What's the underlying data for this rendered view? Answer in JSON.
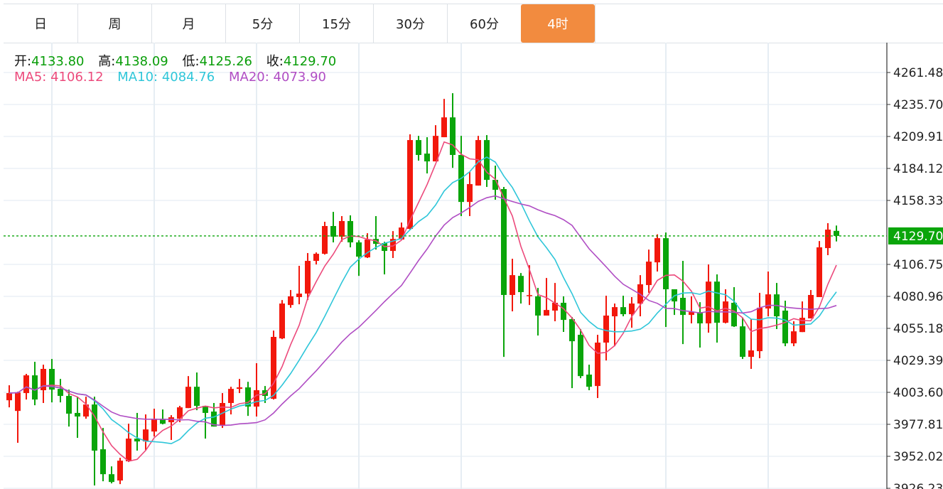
{
  "tabs": [
    {
      "label": "日",
      "active": false
    },
    {
      "label": "周",
      "active": false
    },
    {
      "label": "月",
      "active": false
    },
    {
      "label": "5分",
      "active": false
    },
    {
      "label": "15分",
      "active": false
    },
    {
      "label": "30分",
      "active": false
    },
    {
      "label": "60分",
      "active": false
    },
    {
      "label": "4时",
      "active": true
    }
  ],
  "ohlc_legend": {
    "open_label": "开:",
    "open": "4133.80",
    "high_label": "高:",
    "high": "4138.09",
    "low_label": "低:",
    "low": "4125.26",
    "close_label": "收:",
    "close": "4129.70"
  },
  "ma_legend": {
    "ma5_label": "MA5:",
    "ma5": "4106.12",
    "ma10_label": "MA10:",
    "ma10": "4084.76",
    "ma20_label": "MA20:",
    "ma20": "4073.90"
  },
  "colors": {
    "up": "#f2180c",
    "down": "#0aa50a",
    "ma5": "#ec4a7c",
    "ma10": "#2fc6d9",
    "ma20": "#b04ec4",
    "accent": "#f28b3f",
    "price_line": "#0aa50a"
  },
  "chart_data": {
    "type": "candlestick",
    "title": "",
    "interval": "4时",
    "ylim": [
      3926.23,
      4261.48
    ],
    "yticks": [
      "4261.48",
      "4235.70",
      "4209.91",
      "4184.12",
      "4158.33",
      "4106.75",
      "4080.96",
      "4055.18",
      "4029.39",
      "4003.60",
      "3977.81",
      "3952.02",
      "3926.23"
    ],
    "current_price": "4129.70",
    "ma_periods": [
      5,
      10,
      20
    ],
    "grid": true,
    "candles": [
      [
        3997.2,
        4009.3,
        3991.5,
        4003.0
      ],
      [
        3988.6,
        4004.1,
        3962.9,
        4003.5
      ],
      [
        4003.0,
        4018.5,
        3997.8,
        4017.3
      ],
      [
        4017.3,
        4028.2,
        3993.2,
        3997.8
      ],
      [
        4005.3,
        4025.9,
        3995.0,
        4022.5
      ],
      [
        4022.5,
        4030.5,
        3995.5,
        4005.8
      ],
      [
        4006.4,
        4014.4,
        3995.5,
        4000.7
      ],
      [
        4000.7,
        4005.8,
        3976.0,
        3986.4
      ],
      [
        3987.0,
        4000.1,
        3966.9,
        3984.1
      ],
      [
        3984.1,
        4000.1,
        3982.3,
        3993.8
      ],
      [
        3993.8,
        4000.1,
        3928.5,
        3956.6
      ],
      [
        3957.7,
        3974.9,
        3931.9,
        3937.6
      ],
      [
        3937.6,
        3943.9,
        3930.2,
        3931.3
      ],
      [
        3932.5,
        3950.8,
        3929.6,
        3948.5
      ],
      [
        3948.0,
        3978.3,
        3947.4,
        3966.3
      ],
      [
        3966.3,
        3987.0,
        3956.6,
        3964.0
      ],
      [
        3964.0,
        3985.8,
        3957.1,
        3973.7
      ],
      [
        3972.0,
        3990.4,
        3968.0,
        3982.3
      ],
      [
        3982.3,
        3989.8,
        3977.8,
        3978.3
      ],
      [
        3979.5,
        3985.2,
        3965.2,
        3983.5
      ],
      [
        3982.3,
        3992.7,
        3979.5,
        3991.5
      ],
      [
        3990.9,
        4016.7,
        3990.9,
        4008.1
      ],
      [
        4008.1,
        4019.6,
        3989.2,
        3992.7
      ],
      [
        3992.7,
        3992.7,
        3966.3,
        3987.0
      ],
      [
        3988.1,
        3995.0,
        3976.0,
        3976.0
      ],
      [
        3977.2,
        4003.0,
        3974.9,
        3995.0
      ],
      [
        3995.0,
        4008.1,
        3985.8,
        4006.4
      ],
      [
        4006.4,
        4014.4,
        4003.0,
        4007.6
      ],
      [
        4007.6,
        4012.1,
        3984.6,
        3992.1
      ],
      [
        3992.1,
        4027.1,
        3984.1,
        4005.3
      ],
      [
        4005.3,
        4008.7,
        3995.0,
        4000.7
      ],
      [
        3998.4,
        4053.4,
        3997.8,
        4048.3
      ],
      [
        4047.1,
        4078.0,
        4046.5,
        4075.2
      ],
      [
        4074.0,
        4086.1,
        4071.8,
        4081.0
      ],
      [
        4080.4,
        4105.6,
        4074.6,
        4083.2
      ],
      [
        4083.2,
        4115.9,
        4078.0,
        4109.6
      ],
      [
        4109.6,
        4116.4,
        4106.7,
        4115.3
      ],
      [
        4115.3,
        4141.1,
        4114.7,
        4137.7
      ],
      [
        4137.7,
        4149.1,
        4124.5,
        4129.1
      ],
      [
        4129.1,
        4145.7,
        4125.0,
        4141.7
      ],
      [
        4141.7,
        4146.3,
        4120.5,
        4124.5
      ],
      [
        4124.5,
        4126.2,
        4097.5,
        4113.0
      ],
      [
        4112.4,
        4131.9,
        4111.9,
        4126.8
      ],
      [
        4127.3,
        4145.7,
        4118.7,
        4123.3
      ],
      [
        4123.9,
        4125.0,
        4098.7,
        4117.6
      ],
      [
        4117.6,
        4133.6,
        4111.9,
        4127.3
      ],
      [
        4126.8,
        4140.5,
        4126.8,
        4136.5
      ],
      [
        4135.4,
        4211.6,
        4134.8,
        4207.0
      ],
      [
        4207.0,
        4210.4,
        4190.4,
        4195.0
      ],
      [
        4196.1,
        4209.3,
        4180.1,
        4189.8
      ],
      [
        4189.8,
        4219.0,
        4189.8,
        4210.4
      ],
      [
        4209.3,
        4240.2,
        4209.3,
        4225.3
      ],
      [
        4225.3,
        4244.8,
        4184.6,
        4195.0
      ],
      [
        4195.0,
        4210.4,
        4145.7,
        4157.1
      ],
      [
        4157.1,
        4181.2,
        4145.7,
        4171.5
      ],
      [
        4170.3,
        4210.4,
        4170.3,
        4207.0
      ],
      [
        4207.0,
        4211.0,
        4169.2,
        4174.9
      ],
      [
        4174.9,
        4186.4,
        4158.9,
        4166.9
      ],
      [
        4167.5,
        4169.2,
        4032.2,
        4082.1
      ],
      [
        4082.1,
        4111.3,
        4068.9,
        4098.1
      ],
      [
        4097.5,
        4099.8,
        4075.2,
        4084.4
      ],
      [
        4081.6,
        4106.1,
        4074.0,
        4082.0
      ],
      [
        4081.0,
        4087.8,
        4049.4,
        4065.5
      ],
      [
        4065.5,
        4095.8,
        4065.5,
        4070.0
      ],
      [
        4069.5,
        4091.8,
        4060.9,
        4075.8
      ],
      [
        4075.8,
        4081.0,
        4052.3,
        4062.0
      ],
      [
        4062.6,
        4064.3,
        4007.0,
        4044.8
      ],
      [
        4050.0,
        4054.6,
        4015.0,
        4016.7
      ],
      [
        4017.9,
        4025.9,
        4005.3,
        4008.1
      ],
      [
        4008.7,
        4050.0,
        3999.0,
        4043.7
      ],
      [
        4043.7,
        4081.5,
        4029.3,
        4065.5
      ],
      [
        4064.9,
        4075.2,
        4040.8,
        4072.3
      ],
      [
        4072.3,
        4081.5,
        4064.9,
        4066.6
      ],
      [
        4066.6,
        4080.4,
        4055.7,
        4075.2
      ],
      [
        4075.2,
        4098.1,
        4064.9,
        4090.7
      ],
      [
        4090.1,
        4118.7,
        4083.8,
        4109.0
      ],
      [
        4108.4,
        4131.0,
        4101.0,
        4127.9
      ],
      [
        4127.9,
        4132.5,
        4056.3,
        4086.7
      ],
      [
        4086.7,
        4086.7,
        4066.0,
        4076.9
      ],
      [
        4079.8,
        4109.6,
        4042.5,
        4066.0
      ],
      [
        4066.0,
        4081.0,
        4059.2,
        4068.3
      ],
      [
        4068.3,
        4076.3,
        4039.7,
        4059.2
      ],
      [
        4059.2,
        4106.7,
        4051.7,
        4092.9
      ],
      [
        4092.9,
        4098.7,
        4043.7,
        4059.7
      ],
      [
        4059.7,
        4086.7,
        4059.2,
        4076.9
      ],
      [
        4075.8,
        4088.4,
        4056.3,
        4056.8
      ],
      [
        4056.8,
        4063.7,
        4030.5,
        4032.2
      ],
      [
        4032.2,
        4062.6,
        4022.5,
        4037.4
      ],
      [
        4036.8,
        4083.8,
        4031.1,
        4071.8
      ],
      [
        4071.2,
        4101.0,
        4064.9,
        4082.6
      ],
      [
        4082.6,
        4091.8,
        4054.6,
        4064.9
      ],
      [
        4069.5,
        4077.5,
        4040.8,
        4043.1
      ],
      [
        4043.1,
        4060.9,
        4040.8,
        4052.8
      ],
      [
        4052.2,
        4076.9,
        4052.2,
        4063.7
      ],
      [
        4063.2,
        4086.1,
        4063.2,
        4082.1
      ],
      [
        4080.4,
        4125.6,
        4080.4,
        4120.5
      ],
      [
        4119.9,
        4140.0,
        4114.2,
        4134.8
      ],
      [
        4133.8,
        4138.09,
        4125.26,
        4129.7
      ]
    ]
  }
}
